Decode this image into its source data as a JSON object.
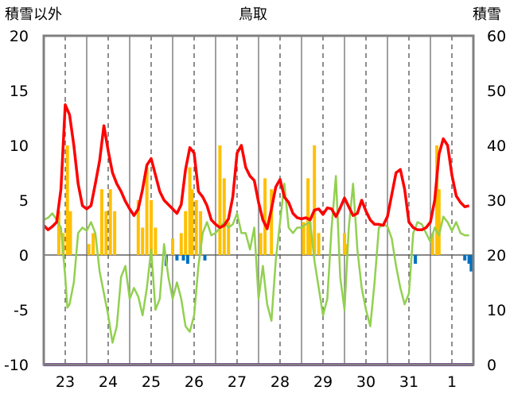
{
  "chart_data": {
    "type": "bar",
    "title": "鳥取",
    "ylabel_left": "積雪以外",
    "ylabel_right": "積雪",
    "ylim_left": [
      -10,
      20
    ],
    "ylim_right": [
      0,
      60
    ],
    "left_ticks": [
      "20",
      "15",
      "10",
      "5",
      "0",
      "-5",
      "-10"
    ],
    "right_ticks": [
      "60",
      "50",
      "40",
      "30",
      "20",
      "10",
      "0"
    ],
    "x_labels": [
      "23",
      "24",
      "25",
      "26",
      "27",
      "28",
      "29",
      "30",
      "31",
      "1"
    ],
    "x_range_days": [
      0,
      10
    ],
    "x_label_positions_days": [
      0.5,
      1.5,
      2.5,
      3.5,
      4.5,
      5.5,
      6.5,
      7.5,
      8.5,
      9.5
    ],
    "grid": "vertical dashed lines at each day label; solid lines between days",
    "series": [
      {
        "kind": "line",
        "axis": "left",
        "color": "#ff0000",
        "points": [
          [
            0.0,
            2.7
          ],
          [
            0.1,
            2.3
          ],
          [
            0.2,
            2.6
          ],
          [
            0.3,
            3.0
          ],
          [
            0.4,
            6.0
          ],
          [
            0.5,
            13.7
          ],
          [
            0.6,
            12.8
          ],
          [
            0.7,
            10.0
          ],
          [
            0.8,
            6.5
          ],
          [
            0.9,
            4.5
          ],
          [
            1.0,
            4.2
          ],
          [
            1.1,
            4.5
          ],
          [
            1.2,
            6.5
          ],
          [
            1.3,
            8.6
          ],
          [
            1.4,
            11.8
          ],
          [
            1.5,
            9.5
          ],
          [
            1.6,
            7.5
          ],
          [
            1.7,
            6.5
          ],
          [
            1.8,
            5.8
          ],
          [
            1.9,
            4.9
          ],
          [
            2.0,
            4.2
          ],
          [
            2.1,
            3.6
          ],
          [
            2.2,
            4.2
          ],
          [
            2.3,
            6.0
          ],
          [
            2.4,
            8.2
          ],
          [
            2.5,
            8.8
          ],
          [
            2.6,
            7.3
          ],
          [
            2.7,
            5.8
          ],
          [
            2.8,
            5.0
          ],
          [
            2.9,
            4.6
          ],
          [
            3.0,
            4.2
          ],
          [
            3.1,
            3.8
          ],
          [
            3.2,
            4.6
          ],
          [
            3.3,
            7.8
          ],
          [
            3.4,
            9.8
          ],
          [
            3.5,
            9.3
          ],
          [
            3.6,
            5.8
          ],
          [
            3.7,
            5.3
          ],
          [
            3.8,
            4.5
          ],
          [
            3.9,
            3.2
          ],
          [
            4.0,
            2.8
          ],
          [
            4.1,
            2.5
          ],
          [
            4.2,
            2.7
          ],
          [
            4.3,
            3.3
          ],
          [
            4.4,
            5.3
          ],
          [
            4.5,
            9.3
          ],
          [
            4.6,
            10.0
          ],
          [
            4.7,
            8.0
          ],
          [
            4.8,
            7.2
          ],
          [
            4.9,
            6.8
          ],
          [
            5.0,
            4.8
          ],
          [
            5.1,
            3.2
          ],
          [
            5.2,
            2.4
          ],
          [
            5.3,
            4.2
          ],
          [
            5.4,
            6.2
          ],
          [
            5.5,
            6.9
          ],
          [
            5.6,
            5.3
          ],
          [
            5.7,
            4.8
          ],
          [
            5.8,
            3.8
          ],
          [
            5.9,
            3.4
          ],
          [
            6.0,
            3.3
          ],
          [
            6.1,
            3.4
          ],
          [
            6.2,
            3.2
          ],
          [
            6.3,
            4.1
          ],
          [
            6.4,
            4.2
          ],
          [
            6.5,
            3.7
          ],
          [
            6.6,
            4.3
          ],
          [
            6.7,
            4.2
          ],
          [
            6.8,
            3.5
          ],
          [
            6.9,
            4.3
          ],
          [
            7.0,
            5.2
          ],
          [
            7.1,
            4.4
          ],
          [
            7.2,
            3.6
          ],
          [
            7.3,
            3.8
          ],
          [
            7.4,
            5.0
          ],
          [
            7.5,
            4.0
          ],
          [
            7.6,
            3.2
          ],
          [
            7.7,
            2.8
          ],
          [
            7.8,
            2.8
          ],
          [
            7.9,
            2.7
          ],
          [
            8.0,
            3.5
          ],
          [
            8.1,
            5.5
          ],
          [
            8.2,
            7.5
          ],
          [
            8.3,
            7.8
          ],
          [
            8.4,
            6.0
          ],
          [
            8.5,
            3.0
          ],
          [
            8.6,
            2.5
          ],
          [
            8.7,
            2.3
          ],
          [
            8.8,
            2.3
          ],
          [
            8.9,
            2.5
          ],
          [
            9.0,
            3.0
          ],
          [
            9.1,
            5.0
          ],
          [
            9.2,
            9.2
          ],
          [
            9.3,
            10.6
          ],
          [
            9.4,
            10.0
          ],
          [
            9.5,
            7.3
          ],
          [
            9.6,
            5.4
          ],
          [
            9.7,
            4.8
          ],
          [
            9.8,
            4.4
          ],
          [
            9.9,
            4.5
          ]
        ]
      },
      {
        "kind": "line",
        "axis": "left",
        "color": "#92d050",
        "points": [
          [
            0.0,
            3.2
          ],
          [
            0.1,
            3.4
          ],
          [
            0.2,
            3.8
          ],
          [
            0.3,
            3.2
          ],
          [
            0.4,
            2.5
          ],
          [
            0.5,
            -2.0
          ],
          [
            0.55,
            -4.8
          ],
          [
            0.6,
            -4.5
          ],
          [
            0.7,
            -2.5
          ],
          [
            0.8,
            2.0
          ],
          [
            0.9,
            2.5
          ],
          [
            1.0,
            2.2
          ],
          [
            1.1,
            3.0
          ],
          [
            1.2,
            2.0
          ],
          [
            1.3,
            -1.5
          ],
          [
            1.4,
            -3.5
          ],
          [
            1.5,
            -5.5
          ],
          [
            1.6,
            -8.0
          ],
          [
            1.7,
            -6.5
          ],
          [
            1.8,
            -2.0
          ],
          [
            1.9,
            -1.0
          ],
          [
            2.0,
            -4.0
          ],
          [
            2.1,
            -3.0
          ],
          [
            2.2,
            -3.8
          ],
          [
            2.3,
            -5.5
          ],
          [
            2.4,
            -3.0
          ],
          [
            2.5,
            0.5
          ],
          [
            2.6,
            -5.0
          ],
          [
            2.7,
            -4.0
          ],
          [
            2.8,
            1.0
          ],
          [
            2.9,
            -2.0
          ],
          [
            3.0,
            -4.0
          ],
          [
            3.1,
            -2.5
          ],
          [
            3.2,
            -4.0
          ],
          [
            3.3,
            -6.5
          ],
          [
            3.4,
            -7.0
          ],
          [
            3.5,
            -5.5
          ],
          [
            3.6,
            -1.0
          ],
          [
            3.7,
            2.0
          ],
          [
            3.8,
            3.0
          ],
          [
            3.9,
            1.8
          ],
          [
            4.0,
            2.0
          ],
          [
            4.1,
            2.5
          ],
          [
            4.2,
            3.0
          ],
          [
            4.3,
            2.5
          ],
          [
            4.4,
            2.8
          ],
          [
            4.5,
            3.8
          ],
          [
            4.6,
            2.0
          ],
          [
            4.7,
            2.0
          ],
          [
            4.8,
            0.5
          ],
          [
            4.9,
            2.5
          ],
          [
            5.0,
            -4.0
          ],
          [
            5.1,
            -1.0
          ],
          [
            5.2,
            -4.5
          ],
          [
            5.3,
            -6.0
          ],
          [
            5.4,
            -0.5
          ],
          [
            5.5,
            3.0
          ],
          [
            5.6,
            6.5
          ],
          [
            5.7,
            2.5
          ],
          [
            5.8,
            2.0
          ],
          [
            5.9,
            2.5
          ],
          [
            6.0,
            2.5
          ],
          [
            6.1,
            2.8
          ],
          [
            6.2,
            3.0
          ],
          [
            6.3,
            -0.5
          ],
          [
            6.4,
            -3.0
          ],
          [
            6.5,
            -5.5
          ],
          [
            6.6,
            -4.0
          ],
          [
            6.7,
            2.5
          ],
          [
            6.8,
            7.2
          ],
          [
            6.9,
            -2.0
          ],
          [
            7.0,
            -5.0
          ],
          [
            7.1,
            2.5
          ],
          [
            7.2,
            6.5
          ],
          [
            7.3,
            0.5
          ],
          [
            7.4,
            -3.0
          ],
          [
            7.5,
            -5.0
          ],
          [
            7.6,
            -6.5
          ],
          [
            7.7,
            -2.5
          ],
          [
            7.8,
            2.5
          ],
          [
            7.9,
            2.8
          ],
          [
            8.0,
            2.6
          ],
          [
            8.1,
            1.5
          ],
          [
            8.2,
            -1.0
          ],
          [
            8.3,
            -3.0
          ],
          [
            8.4,
            -4.5
          ],
          [
            8.5,
            -3.5
          ],
          [
            8.6,
            2.0
          ],
          [
            8.7,
            3.0
          ],
          [
            8.8,
            2.8
          ],
          [
            8.9,
            2.0
          ],
          [
            9.0,
            1.2
          ],
          [
            9.1,
            2.5
          ],
          [
            9.2,
            1.8
          ],
          [
            9.3,
            3.5
          ],
          [
            9.4,
            3.0
          ],
          [
            9.5,
            2.2
          ],
          [
            9.6,
            3.0
          ],
          [
            9.7,
            2.0
          ],
          [
            9.8,
            1.8
          ],
          [
            9.9,
            1.8
          ]
        ]
      },
      {
        "kind": "bar",
        "axis": "left",
        "color": "#ffc000",
        "bars": [
          [
            0.35,
            4.0
          ],
          [
            0.45,
            2.0
          ],
          [
            0.55,
            10.0
          ],
          [
            0.62,
            4.0
          ],
          [
            1.05,
            1.0
          ],
          [
            1.15,
            2.0
          ],
          [
            1.35,
            6.0
          ],
          [
            1.45,
            4.0
          ],
          [
            1.55,
            6.0
          ],
          [
            1.65,
            4.0
          ],
          [
            2.2,
            5.0
          ],
          [
            2.3,
            2.5
          ],
          [
            2.4,
            8.0
          ],
          [
            2.5,
            5.0
          ],
          [
            2.6,
            2.5
          ],
          [
            3.0,
            1.5
          ],
          [
            3.2,
            2.0
          ],
          [
            3.3,
            4.0
          ],
          [
            3.4,
            8.0
          ],
          [
            3.45,
            6.0
          ],
          [
            3.55,
            5.0
          ],
          [
            3.65,
            4.0
          ],
          [
            4.1,
            10.0
          ],
          [
            4.2,
            7.0
          ],
          [
            4.3,
            3.0
          ],
          [
            5.05,
            2.0
          ],
          [
            5.15,
            7.0
          ],
          [
            5.3,
            6.0
          ],
          [
            6.05,
            3.0
          ],
          [
            6.15,
            7.0
          ],
          [
            6.2,
            3.0
          ],
          [
            6.3,
            10.0
          ],
          [
            6.4,
            2.0
          ],
          [
            7.0,
            2.0
          ],
          [
            7.05,
            1.0
          ],
          [
            9.05,
            2.0
          ],
          [
            9.15,
            10.0
          ],
          [
            9.2,
            6.0
          ]
        ]
      },
      {
        "kind": "bar",
        "axis": "left",
        "color": "#0070c0",
        "bars": [
          [
            2.85,
            -1.0
          ],
          [
            3.1,
            -0.5
          ],
          [
            3.25,
            -0.5
          ],
          [
            3.35,
            -0.8
          ],
          [
            3.75,
            -0.5
          ],
          [
            8.65,
            -0.8
          ],
          [
            9.8,
            -0.5
          ],
          [
            9.9,
            -0.8
          ],
          [
            9.95,
            -1.5
          ]
        ]
      },
      {
        "kind": "line",
        "axis": "right",
        "color": "#7030a0",
        "points": [
          [
            0.0,
            0.0
          ],
          [
            10.0,
            0.0
          ]
        ]
      }
    ]
  }
}
